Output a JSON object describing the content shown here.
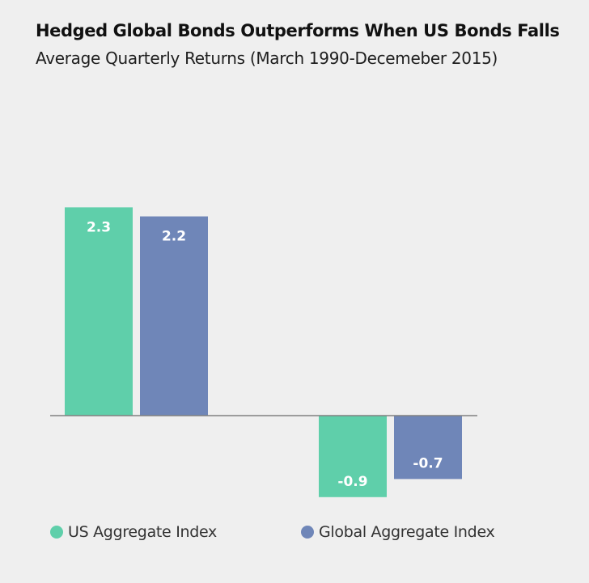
{
  "header": {
    "title": "Hedged Global Bonds Outperforms When US Bonds Falls",
    "subtitle": "Average Quarterly Returns (March 1990-Decemeber 2015)"
  },
  "colors": {
    "background": "#efefef",
    "us_aggregate": "#5fcfaa",
    "global_aggregate": "#6f86b8",
    "data_label": "#ffffff",
    "baseline": "#808080"
  },
  "chart_data": {
    "type": "bar",
    "title": "Hedged Global Bonds Outperforms When US Bonds Falls",
    "subtitle": "Average Quarterly Returns (March 1990-Decemeber 2015)",
    "categories": [
      "",
      ""
    ],
    "series": [
      {
        "name": "US Aggregate Index",
        "values": [
          2.3,
          -0.9
        ]
      },
      {
        "name": "Global Aggregate Index",
        "values": [
          2.2,
          -0.7
        ]
      }
    ],
    "data_labels": [
      [
        "2.3",
        "-0.9"
      ],
      [
        "2.2",
        "-0.7"
      ]
    ],
    "xlabel": "",
    "ylabel": "",
    "ylim": [
      -1.0,
      2.5
    ],
    "grid": false,
    "legend": "bottom"
  },
  "legend": {
    "items": [
      {
        "label": "US Aggregate Index"
      },
      {
        "label": "Global Aggregate Index"
      }
    ]
  }
}
